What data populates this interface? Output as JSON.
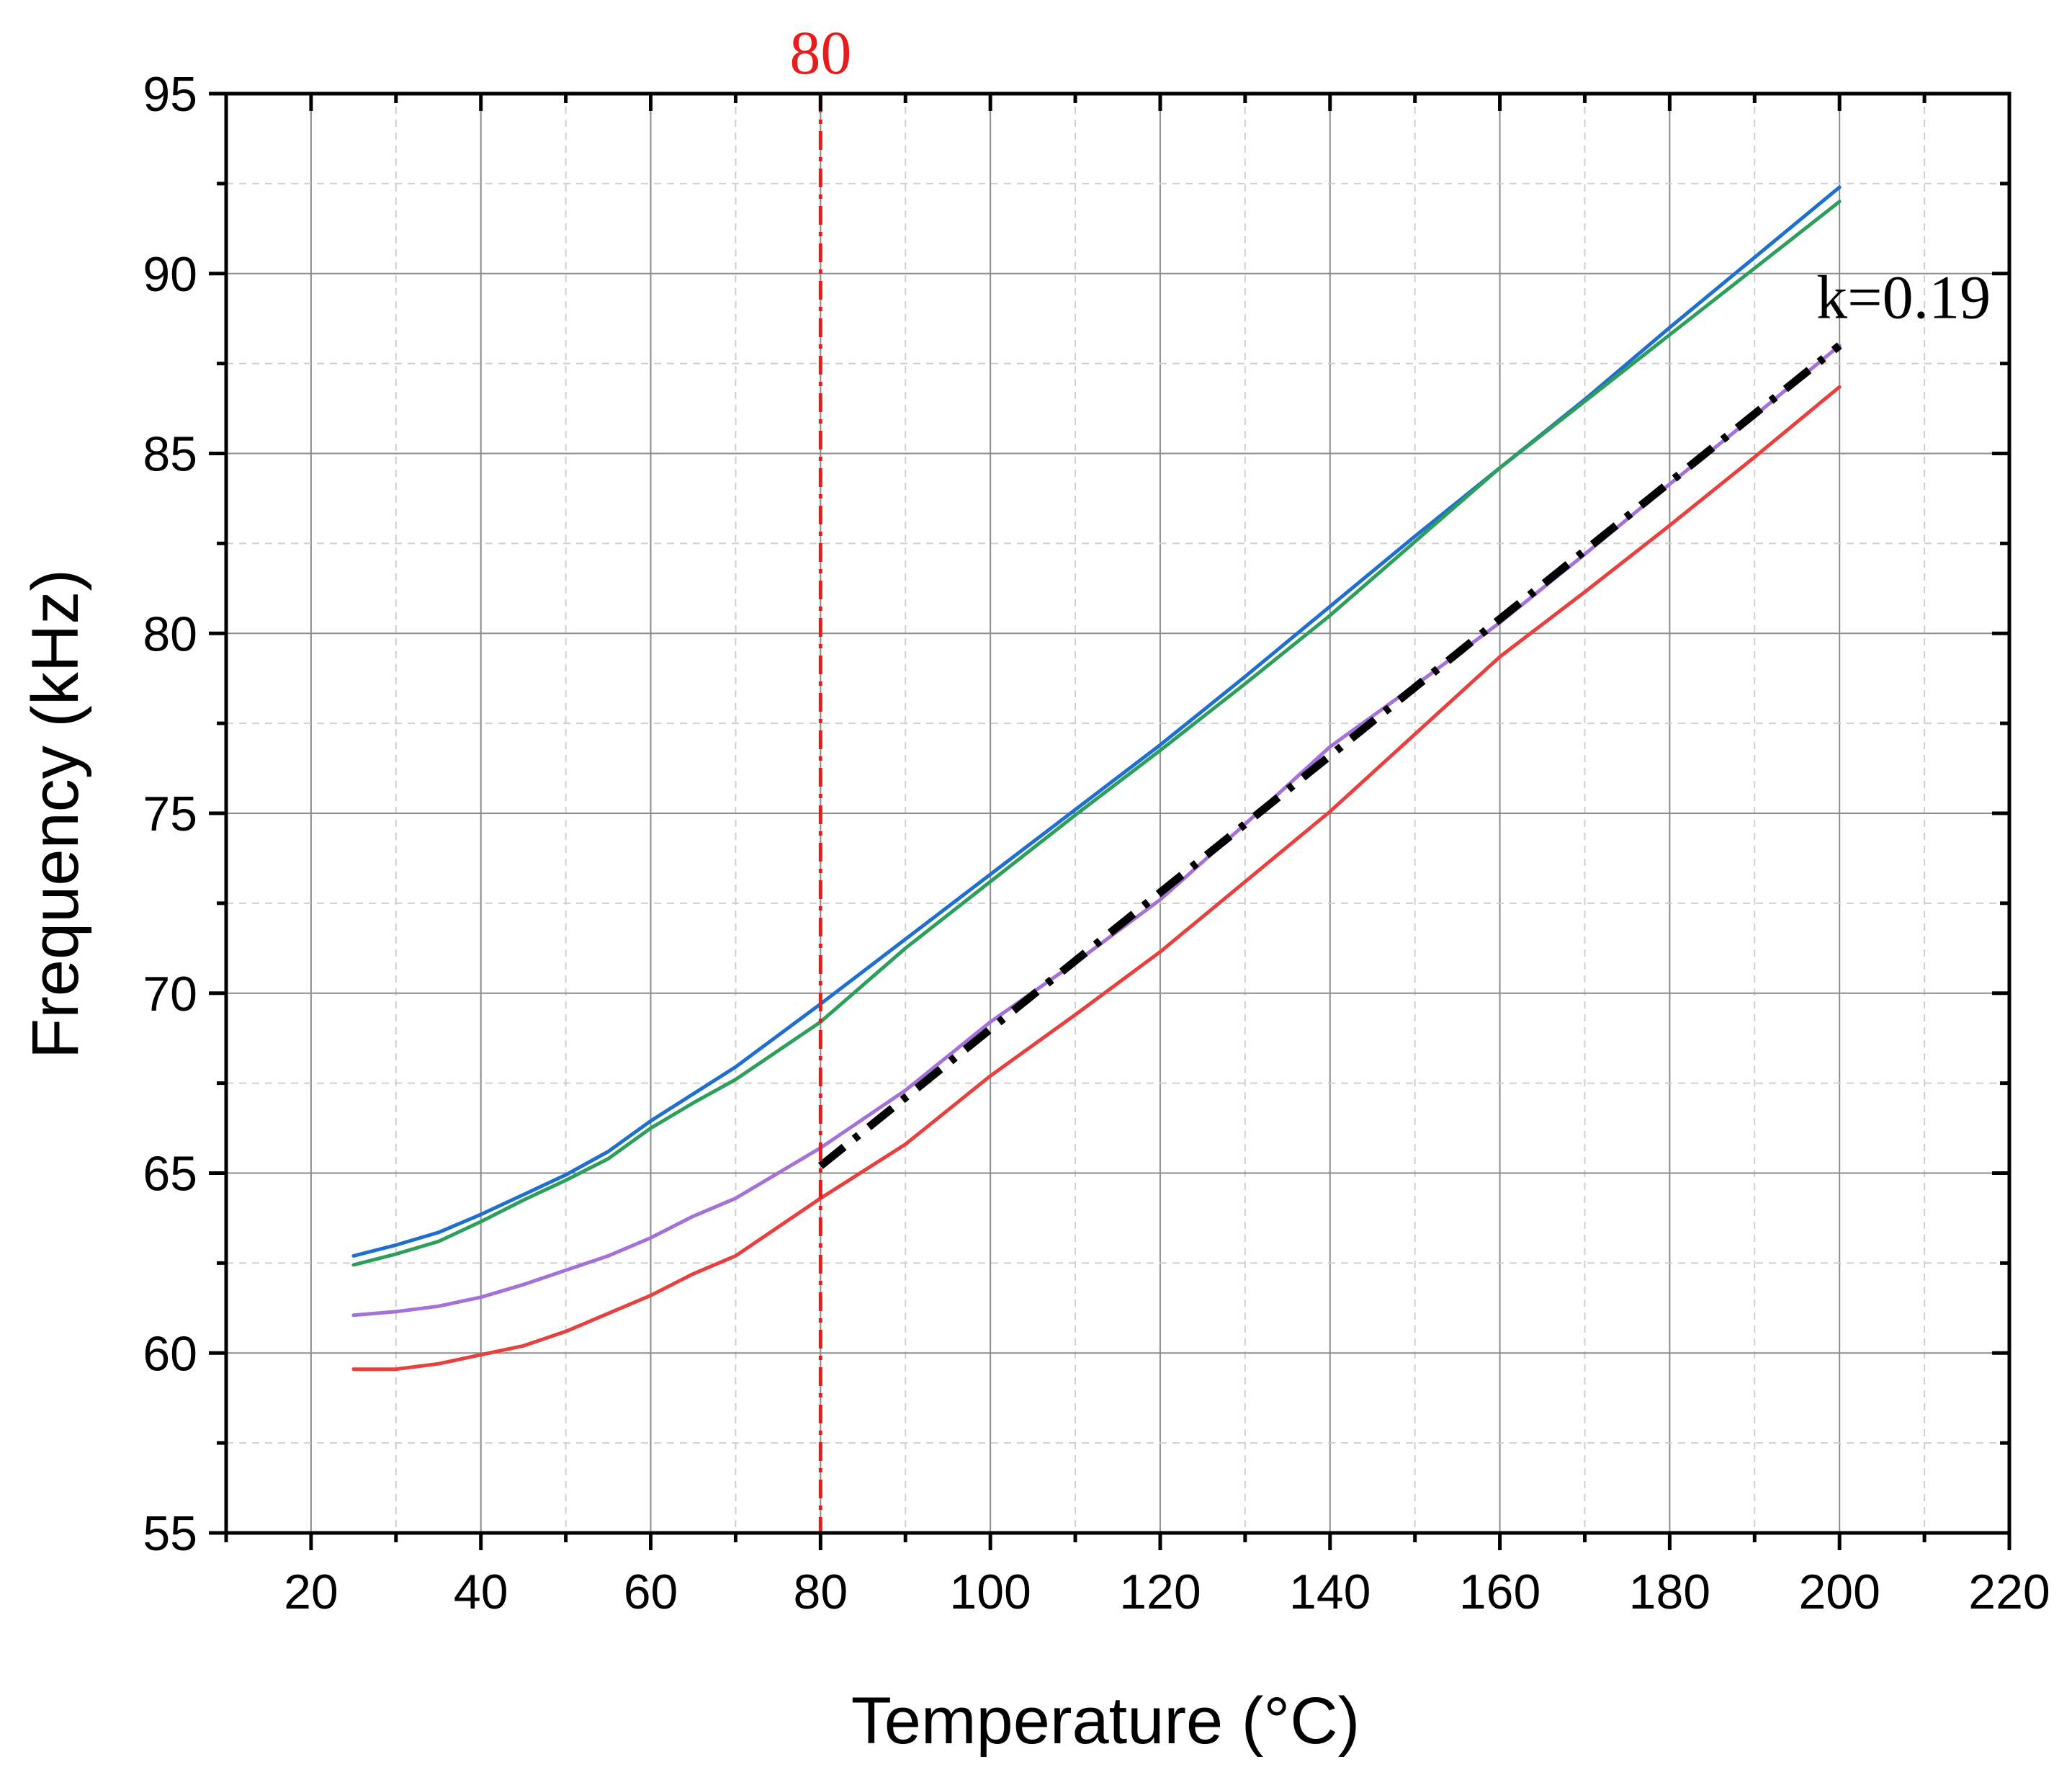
{
  "chart_data": {
    "type": "line",
    "title": "",
    "xlabel": "Temperature (°C)",
    "ylabel": "Frequency (kHz)",
    "xlim": [
      10,
      220
    ],
    "ylim": [
      55,
      95
    ],
    "xticks": [
      20,
      40,
      60,
      80,
      100,
      120,
      140,
      160,
      180,
      200,
      220
    ],
    "yticks": [
      55,
      60,
      65,
      70,
      75,
      80,
      85,
      90,
      95
    ],
    "grid": true,
    "colors": {
      "blue": "#1f6fd1",
      "green": "#2e9e5b",
      "purple": "#a371d8",
      "red": "#e8403f",
      "fit": "#000000",
      "marker": "#e81c1c"
    },
    "series": [
      {
        "name": "blue",
        "color": "#1f6fd1",
        "x": [
          25,
          30,
          35,
          40,
          45,
          50,
          55,
          60,
          65,
          70,
          80,
          90,
          100,
          110,
          120,
          130,
          140,
          150,
          160,
          170,
          180,
          190,
          200
        ],
        "y": [
          62.7,
          63.0,
          63.35,
          63.85,
          64.4,
          64.95,
          65.6,
          66.45,
          67.2,
          67.95,
          69.7,
          71.5,
          73.3,
          75.1,
          76.9,
          78.8,
          80.75,
          82.7,
          84.6,
          86.5,
          88.5,
          90.45,
          92.4
        ]
      },
      {
        "name": "green",
        "color": "#2e9e5b",
        "x": [
          25,
          30,
          35,
          40,
          45,
          50,
          55,
          60,
          65,
          70,
          80,
          90,
          100,
          110,
          120,
          130,
          140,
          150,
          160,
          170,
          180,
          190,
          200
        ],
        "y": [
          62.45,
          62.75,
          63.1,
          63.65,
          64.25,
          64.8,
          65.4,
          66.25,
          66.95,
          67.6,
          69.2,
          71.25,
          73.1,
          74.95,
          76.75,
          78.6,
          80.5,
          82.55,
          84.6,
          86.45,
          88.3,
          90.15,
          92.0
        ]
      },
      {
        "name": "purple",
        "color": "#a371d8",
        "x": [
          25,
          30,
          35,
          40,
          45,
          50,
          55,
          60,
          65,
          70,
          80,
          90,
          100,
          110,
          120,
          130,
          140,
          150,
          160,
          170,
          180,
          190,
          200
        ],
        "y": [
          61.05,
          61.15,
          61.3,
          61.55,
          61.9,
          62.3,
          62.7,
          63.2,
          63.8,
          64.3,
          65.7,
          67.3,
          69.2,
          70.85,
          72.6,
          74.7,
          76.85,
          78.55,
          80.3,
          82.2,
          84.15,
          86.05,
          88.0
        ]
      },
      {
        "name": "red",
        "color": "#e8403f",
        "x": [
          25,
          30,
          35,
          40,
          45,
          50,
          55,
          60,
          65,
          70,
          80,
          90,
          100,
          110,
          120,
          130,
          140,
          150,
          160,
          170,
          180,
          190,
          200
        ],
        "y": [
          59.55,
          59.55,
          59.7,
          59.95,
          60.2,
          60.6,
          61.1,
          61.6,
          62.2,
          62.7,
          64.3,
          65.8,
          67.7,
          69.4,
          71.15,
          73.1,
          75.05,
          77.2,
          79.35,
          81.15,
          83.0,
          84.9,
          86.85
        ]
      }
    ],
    "fit_line": {
      "label": "k=0.19",
      "slope": 0.19,
      "style": "dash-dot",
      "color": "#000000",
      "x": [
        80,
        200
      ],
      "y": [
        65.2,
        88.0
      ]
    },
    "vline": {
      "x": 80,
      "label": "80",
      "color": "#e81c1c",
      "style": "dash-dot"
    }
  }
}
